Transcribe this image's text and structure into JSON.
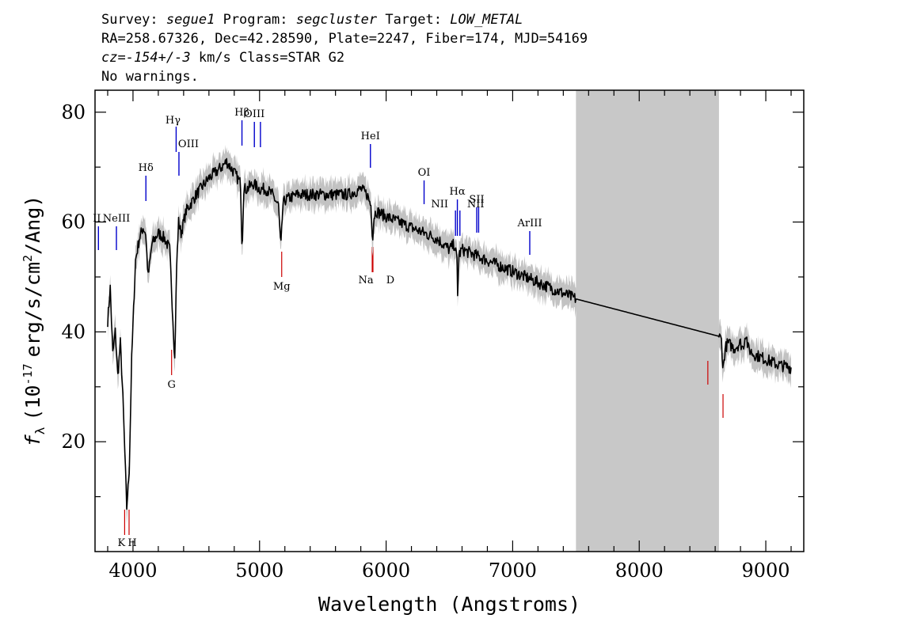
{
  "header": {
    "line1": {
      "survey_label": "Survey:",
      "survey": "segue1",
      "program_label": "Program:",
      "program": "segcluster",
      "target_label": "Target:",
      "target": "LOW_METAL"
    },
    "line2": "RA=258.67326, Dec=42.28590, Plate=2247, Fiber=174, MJD=54169",
    "line3": {
      "cz": "cz=-154+/-3",
      "rest": "km/s Class=STAR G2"
    },
    "line4": "No warnings."
  },
  "chart_data": {
    "type": "line",
    "xlabel": "Wavelength (Angstroms)",
    "ylabel_prefix": "f",
    "ylabel_sub": "λ",
    "ylabel_mid": "(10",
    "ylabel_sup": "-17",
    "ylabel_rest": "erg/s/cm",
    "ylabel_sup2": "2",
    "ylabel_end": "/Ang)",
    "xlim": [
      3700,
      9300
    ],
    "ylim": [
      0,
      84
    ],
    "xticks": [
      4000,
      5000,
      6000,
      7000,
      8000,
      9000
    ],
    "xtick_labels": [
      "4000",
      "5000",
      "6000",
      "7000",
      "8000",
      "9000"
    ],
    "yticks": [
      20,
      40,
      60,
      80
    ],
    "ytick_labels": [
      "20",
      "40",
      "60",
      "80"
    ],
    "masked_region": [
      7500,
      8630
    ],
    "colors": {
      "spectrum": "#000000",
      "error": "#c2c2c2",
      "mask": "#c8c8c8",
      "emission": "#0000cc",
      "absorption": "#cc0000"
    },
    "series": [
      {
        "x": [
          3800,
          3820,
          3840,
          3860,
          3880,
          3900,
          3920,
          3935,
          3950,
          3970,
          3990,
          4020,
          4050,
          4080,
          4100,
          4120,
          4150,
          4200,
          4250,
          4290,
          4310,
          4330,
          4345,
          4360,
          4380,
          4420,
          4500,
          4600,
          4700,
          4740,
          4800,
          4850,
          4862,
          4875,
          4900,
          4950,
          5000,
          5050,
          5100,
          5150,
          5168,
          5185,
          5200,
          5300,
          5400,
          5500,
          5600,
          5700,
          5800,
          5850,
          5880,
          5893,
          5905,
          5920,
          6000,
          6100,
          6200,
          6300,
          6400,
          6500,
          6540,
          6560,
          6563,
          6575,
          6600,
          6700,
          6800,
          6900,
          7000,
          7100,
          7200,
          7300,
          7400,
          7500,
          8630,
          8650,
          8662,
          8680,
          8700,
          8750,
          8800,
          8820,
          8842,
          8860,
          8900,
          9000,
          9100,
          9200
        ],
        "y": [
          42,
          48,
          36,
          40,
          32,
          38,
          28,
          18,
          8,
          15,
          35,
          53,
          57,
          59,
          58,
          50,
          56,
          58,
          57,
          55,
          45,
          35,
          52,
          60,
          58,
          62,
          65,
          68,
          70,
          71,
          69,
          67,
          55,
          66,
          66,
          67,
          66,
          66,
          65,
          63,
          55,
          63,
          64,
          65,
          65,
          65,
          65,
          65,
          66,
          65,
          63,
          57,
          61,
          62,
          61,
          60,
          59,
          58,
          57,
          55,
          56,
          53,
          45,
          54,
          55,
          54,
          53,
          52,
          51,
          50,
          49,
          48,
          47,
          46,
          39.2,
          38.5,
          33,
          37,
          38,
          37,
          38,
          37,
          40,
          37,
          36,
          35,
          34,
          33.5
        ]
      }
    ],
    "emission_lines": [
      {
        "label": "ΙΙ",
        "wave": 3727
      },
      {
        "label": "NeIII",
        "wave": 3869
      },
      {
        "label": "Hδ",
        "wave": 4102
      },
      {
        "label": "Hγ",
        "wave": 4341
      },
      {
        "label": "OIII",
        "wave": 4363
      },
      {
        "label": "Hβ",
        "wave": 4861
      },
      {
        "label": "OIII",
        "wave": 4959
      },
      {
        "label": "OIII",
        "wave": 5007
      },
      {
        "label": "HeI",
        "wave": 5876
      },
      {
        "label": "OI",
        "wave": 6300
      },
      {
        "label": "NII",
        "wave": 6548
      },
      {
        "label": "Hα",
        "wave": 6563
      },
      {
        "label": "NII",
        "wave": 6583
      },
      {
        "label": "SII",
        "wave": 6716
      },
      {
        "label": "SII",
        "wave": 6731
      },
      {
        "label": "ArIII",
        "wave": 7135
      }
    ],
    "absorption_lines": [
      {
        "label": "K",
        "wave": 3934
      },
      {
        "label": "H",
        "wave": 3969
      },
      {
        "label": "G",
        "wave": 4305
      },
      {
        "label": "Mg",
        "wave": 5175
      },
      {
        "label": "Na",
        "wave": 5890
      },
      {
        "label": "D",
        "wave": 5896
      },
      {
        "label": "",
        "wave": 8542
      },
      {
        "label": "",
        "wave": 8662
      }
    ]
  }
}
